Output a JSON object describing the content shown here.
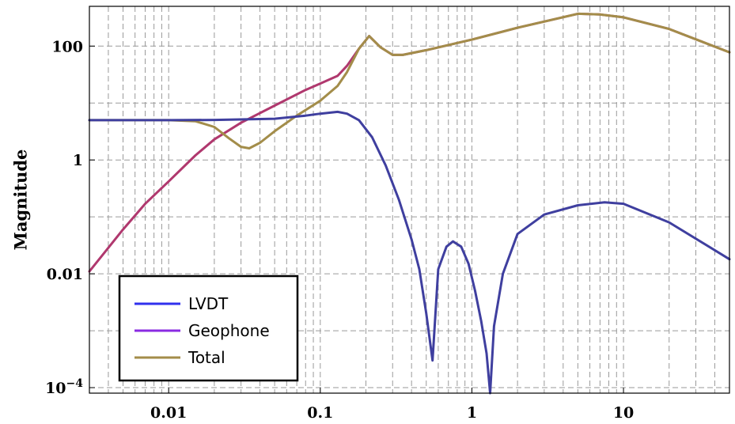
{
  "chart_data": {
    "type": "line",
    "title": "",
    "xlabel": "",
    "ylabel": "Magnitude",
    "xscale": "log",
    "yscale": "log",
    "xlim": [
      0.003,
      50
    ],
    "ylim": [
      8e-05,
      500
    ],
    "grid": true,
    "legend_position": "bottom-left",
    "x_ticks": [
      {
        "value": 0.01,
        "label": "0.01"
      },
      {
        "value": 0.1,
        "label": "0.1"
      },
      {
        "value": 1,
        "label": "1"
      },
      {
        "value": 10,
        "label": "10"
      }
    ],
    "y_ticks": [
      {
        "value": 0.0001,
        "base": "10",
        "exp": "−4"
      },
      {
        "value": 0.01,
        "label": "0.01"
      },
      {
        "value": 1,
        "label": "1"
      },
      {
        "value": 100,
        "label": "100"
      }
    ],
    "series": [
      {
        "name": "LVDT",
        "color": "#3f3f9f",
        "legend_color": "#3030ee",
        "points": [
          [
            0.003,
            5
          ],
          [
            0.01,
            5
          ],
          [
            0.02,
            5.05
          ],
          [
            0.05,
            5.3
          ],
          [
            0.08,
            6
          ],
          [
            0.1,
            6.5
          ],
          [
            0.13,
            7
          ],
          [
            0.15,
            6.5
          ],
          [
            0.18,
            5
          ],
          [
            0.22,
            2.5
          ],
          [
            0.27,
            0.8
          ],
          [
            0.33,
            0.2
          ],
          [
            0.4,
            0.04
          ],
          [
            0.45,
            0.012
          ],
          [
            0.5,
            0.002
          ],
          [
            0.55,
            0.0003
          ],
          [
            0.6,
            0.012
          ],
          [
            0.68,
            0.03
          ],
          [
            0.75,
            0.037
          ],
          [
            0.85,
            0.03
          ],
          [
            0.95,
            0.015
          ],
          [
            1.05,
            0.005
          ],
          [
            1.15,
            0.0015
          ],
          [
            1.25,
            0.0004
          ],
          [
            1.32,
            8e-05
          ],
          [
            1.4,
            0.0012
          ],
          [
            1.6,
            0.01
          ],
          [
            2,
            0.05
          ],
          [
            3,
            0.11
          ],
          [
            5,
            0.16
          ],
          [
            7.5,
            0.18
          ],
          [
            10,
            0.17
          ],
          [
            20,
            0.08
          ],
          [
            50,
            0.018
          ]
        ]
      },
      {
        "name": "Geophone",
        "color": "#b0386e",
        "legend_color": "#8a2be2",
        "points": [
          [
            0.003,
            0.011
          ],
          [
            0.005,
            0.06
          ],
          [
            0.007,
            0.17
          ],
          [
            0.01,
            0.42
          ],
          [
            0.015,
            1.2
          ],
          [
            0.02,
            2.3
          ],
          [
            0.03,
            4.5
          ],
          [
            0.05,
            9
          ],
          [
            0.08,
            17
          ],
          [
            0.1,
            22
          ],
          [
            0.13,
            30
          ],
          [
            0.15,
            45
          ],
          [
            0.18,
            90
          ],
          [
            0.21,
            150
          ],
          [
            0.25,
            95
          ],
          [
            0.3,
            70
          ],
          [
            0.35,
            70
          ],
          [
            0.5,
            85
          ],
          [
            1,
            130
          ],
          [
            2,
            210
          ],
          [
            5,
            370
          ],
          [
            7,
            360
          ],
          [
            10,
            320
          ],
          [
            20,
            200
          ],
          [
            50,
            78
          ]
        ]
      },
      {
        "name": "Total",
        "color": "#a38d4a",
        "legend_color": "#a38d4a",
        "points": [
          [
            0.003,
            5
          ],
          [
            0.01,
            5
          ],
          [
            0.015,
            4.8
          ],
          [
            0.02,
            3.8
          ],
          [
            0.025,
            2.4
          ],
          [
            0.03,
            1.7
          ],
          [
            0.034,
            1.6
          ],
          [
            0.04,
            2
          ],
          [
            0.05,
            3.2
          ],
          [
            0.07,
            6
          ],
          [
            0.1,
            11
          ],
          [
            0.13,
            20
          ],
          [
            0.15,
            35
          ],
          [
            0.18,
            90
          ],
          [
            0.21,
            150
          ],
          [
            0.25,
            95
          ],
          [
            0.3,
            70
          ],
          [
            0.35,
            70
          ],
          [
            0.5,
            85
          ],
          [
            1,
            130
          ],
          [
            2,
            210
          ],
          [
            5,
            370
          ],
          [
            7,
            360
          ],
          [
            10,
            320
          ],
          [
            20,
            200
          ],
          [
            50,
            78
          ]
        ]
      }
    ]
  }
}
